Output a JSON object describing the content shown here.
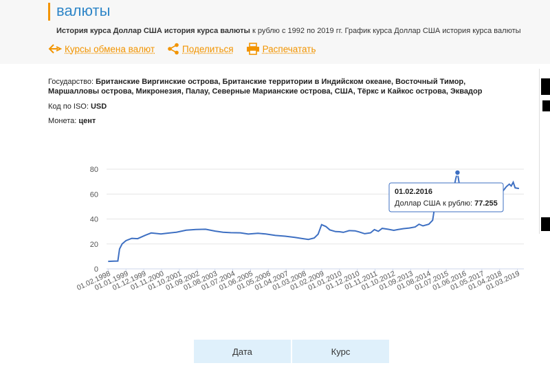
{
  "page": {
    "heading": "валюты",
    "subtitle_bold": "История курса Доллар США история курса валюты",
    "subtitle_rest": " к рублю с 1992 по 2019 гг. График курса Доллар США история курса валюты"
  },
  "actions": {
    "rates_label": "Курсы обмена валют",
    "share_label": "Поделиться",
    "print_label": "Распечатать"
  },
  "info": {
    "country_label": "Государство:",
    "country_value_line1": "Британские Виргинские острова, Британские территории в Индийском океане, Восточный Тимор,",
    "country_value_line2": "Маршалловы острова, Микронезия, Палау, Северные Марианские острова, США, Тёркс и Кайкос острова, Эквадор",
    "iso_label": "Код по ISO:",
    "iso_value": "USD",
    "coin_label": "Монета:",
    "coin_value": "цент"
  },
  "tooltip": {
    "date": "01.02.2016",
    "label": "Доллар США к рублю:",
    "value": "77.255"
  },
  "tabs": {
    "date_label": "Дата",
    "rate_label": "Курс"
  },
  "chart_data": {
    "type": "line",
    "title": "",
    "xlabel": "",
    "ylabel": "",
    "ylim": [
      0,
      80
    ],
    "yticks": [
      0,
      20,
      40,
      60,
      80
    ],
    "grid": true,
    "x_tick_labels": [
      "01.02.1998",
      "01.01.1999",
      "01.12.1999",
      "01.11.2000",
      "01.10.2001",
      "01.09.2002",
      "01.08.2003",
      "01.07.2004",
      "01.06.2005",
      "01.05.2006",
      "01.04.2007",
      "01.03.2008",
      "01.02.2009",
      "01.01.2010",
      "01.12.2010",
      "01.11.2011",
      "01.10.2012",
      "01.09.2013",
      "01.08.2014",
      "01.07.2015",
      "01.06.2016",
      "01.05.2017",
      "01.04.2018",
      "01.03.2019"
    ],
    "series": [
      {
        "color": "#3d6fc2",
        "points": [
          [
            1998.08,
            6.0
          ],
          [
            1998.4,
            6.2
          ],
          [
            1998.58,
            6.3
          ],
          [
            1998.67,
            16.0
          ],
          [
            1998.8,
            20.0
          ],
          [
            1999.0,
            22.6
          ],
          [
            1999.3,
            24.5
          ],
          [
            1999.6,
            24.2
          ],
          [
            2000.0,
            27.0
          ],
          [
            2000.3,
            28.8
          ],
          [
            2000.8,
            28.0
          ],
          [
            2001.1,
            28.5
          ],
          [
            2001.6,
            29.4
          ],
          [
            2002.1,
            31.0
          ],
          [
            2002.6,
            31.6
          ],
          [
            2003.1,
            31.8
          ],
          [
            2003.6,
            30.3
          ],
          [
            2004.0,
            29.4
          ],
          [
            2004.4,
            29.0
          ],
          [
            2004.9,
            28.9
          ],
          [
            2005.3,
            27.9
          ],
          [
            2005.8,
            28.5
          ],
          [
            2006.2,
            28.0
          ],
          [
            2006.7,
            26.8
          ],
          [
            2007.2,
            26.2
          ],
          [
            2007.7,
            25.2
          ],
          [
            2008.1,
            24.3
          ],
          [
            2008.4,
            23.6
          ],
          [
            2008.7,
            24.8
          ],
          [
            2008.9,
            27.8
          ],
          [
            2009.08,
            35.5
          ],
          [
            2009.3,
            34.0
          ],
          [
            2009.5,
            31.3
          ],
          [
            2009.8,
            29.9
          ],
          [
            2010.0,
            29.8
          ],
          [
            2010.2,
            29.3
          ],
          [
            2010.5,
            30.7
          ],
          [
            2010.8,
            30.5
          ],
          [
            2011.0,
            29.7
          ],
          [
            2011.3,
            28.2
          ],
          [
            2011.6,
            28.9
          ],
          [
            2011.8,
            31.5
          ],
          [
            2012.0,
            30.1
          ],
          [
            2012.2,
            32.5
          ],
          [
            2012.5,
            31.8
          ],
          [
            2012.8,
            30.9
          ],
          [
            2013.0,
            31.5
          ],
          [
            2013.3,
            32.3
          ],
          [
            2013.6,
            32.8
          ],
          [
            2013.9,
            33.6
          ],
          [
            2014.1,
            35.8
          ],
          [
            2014.3,
            34.5
          ],
          [
            2014.6,
            35.8
          ],
          [
            2014.8,
            39.0
          ],
          [
            2014.97,
            56.2
          ],
          [
            2015.08,
            68.9
          ],
          [
            2015.3,
            52.5
          ],
          [
            2015.4,
            50.7
          ],
          [
            2015.55,
            53.0
          ],
          [
            2015.7,
            62.0
          ],
          [
            2015.9,
            65.8
          ],
          [
            2016.0,
            73.0
          ],
          [
            2016.08,
            77.255
          ],
          [
            2016.2,
            65.5
          ],
          [
            2016.5,
            64.0
          ],
          [
            2016.8,
            62.0
          ],
          [
            2017.0,
            59.5
          ],
          [
            2017.3,
            57.0
          ],
          [
            2017.6,
            59.0
          ],
          [
            2017.9,
            58.5
          ],
          [
            2018.2,
            57.0
          ],
          [
            2018.4,
            62.0
          ],
          [
            2018.6,
            66.0
          ],
          [
            2018.75,
            68.0
          ],
          [
            2018.85,
            66.5
          ],
          [
            2018.95,
            69.5
          ],
          [
            2019.05,
            65.0
          ],
          [
            2019.25,
            64.5
          ]
        ]
      }
    ],
    "highlight_point": [
      2016.08,
      77.255
    ]
  }
}
